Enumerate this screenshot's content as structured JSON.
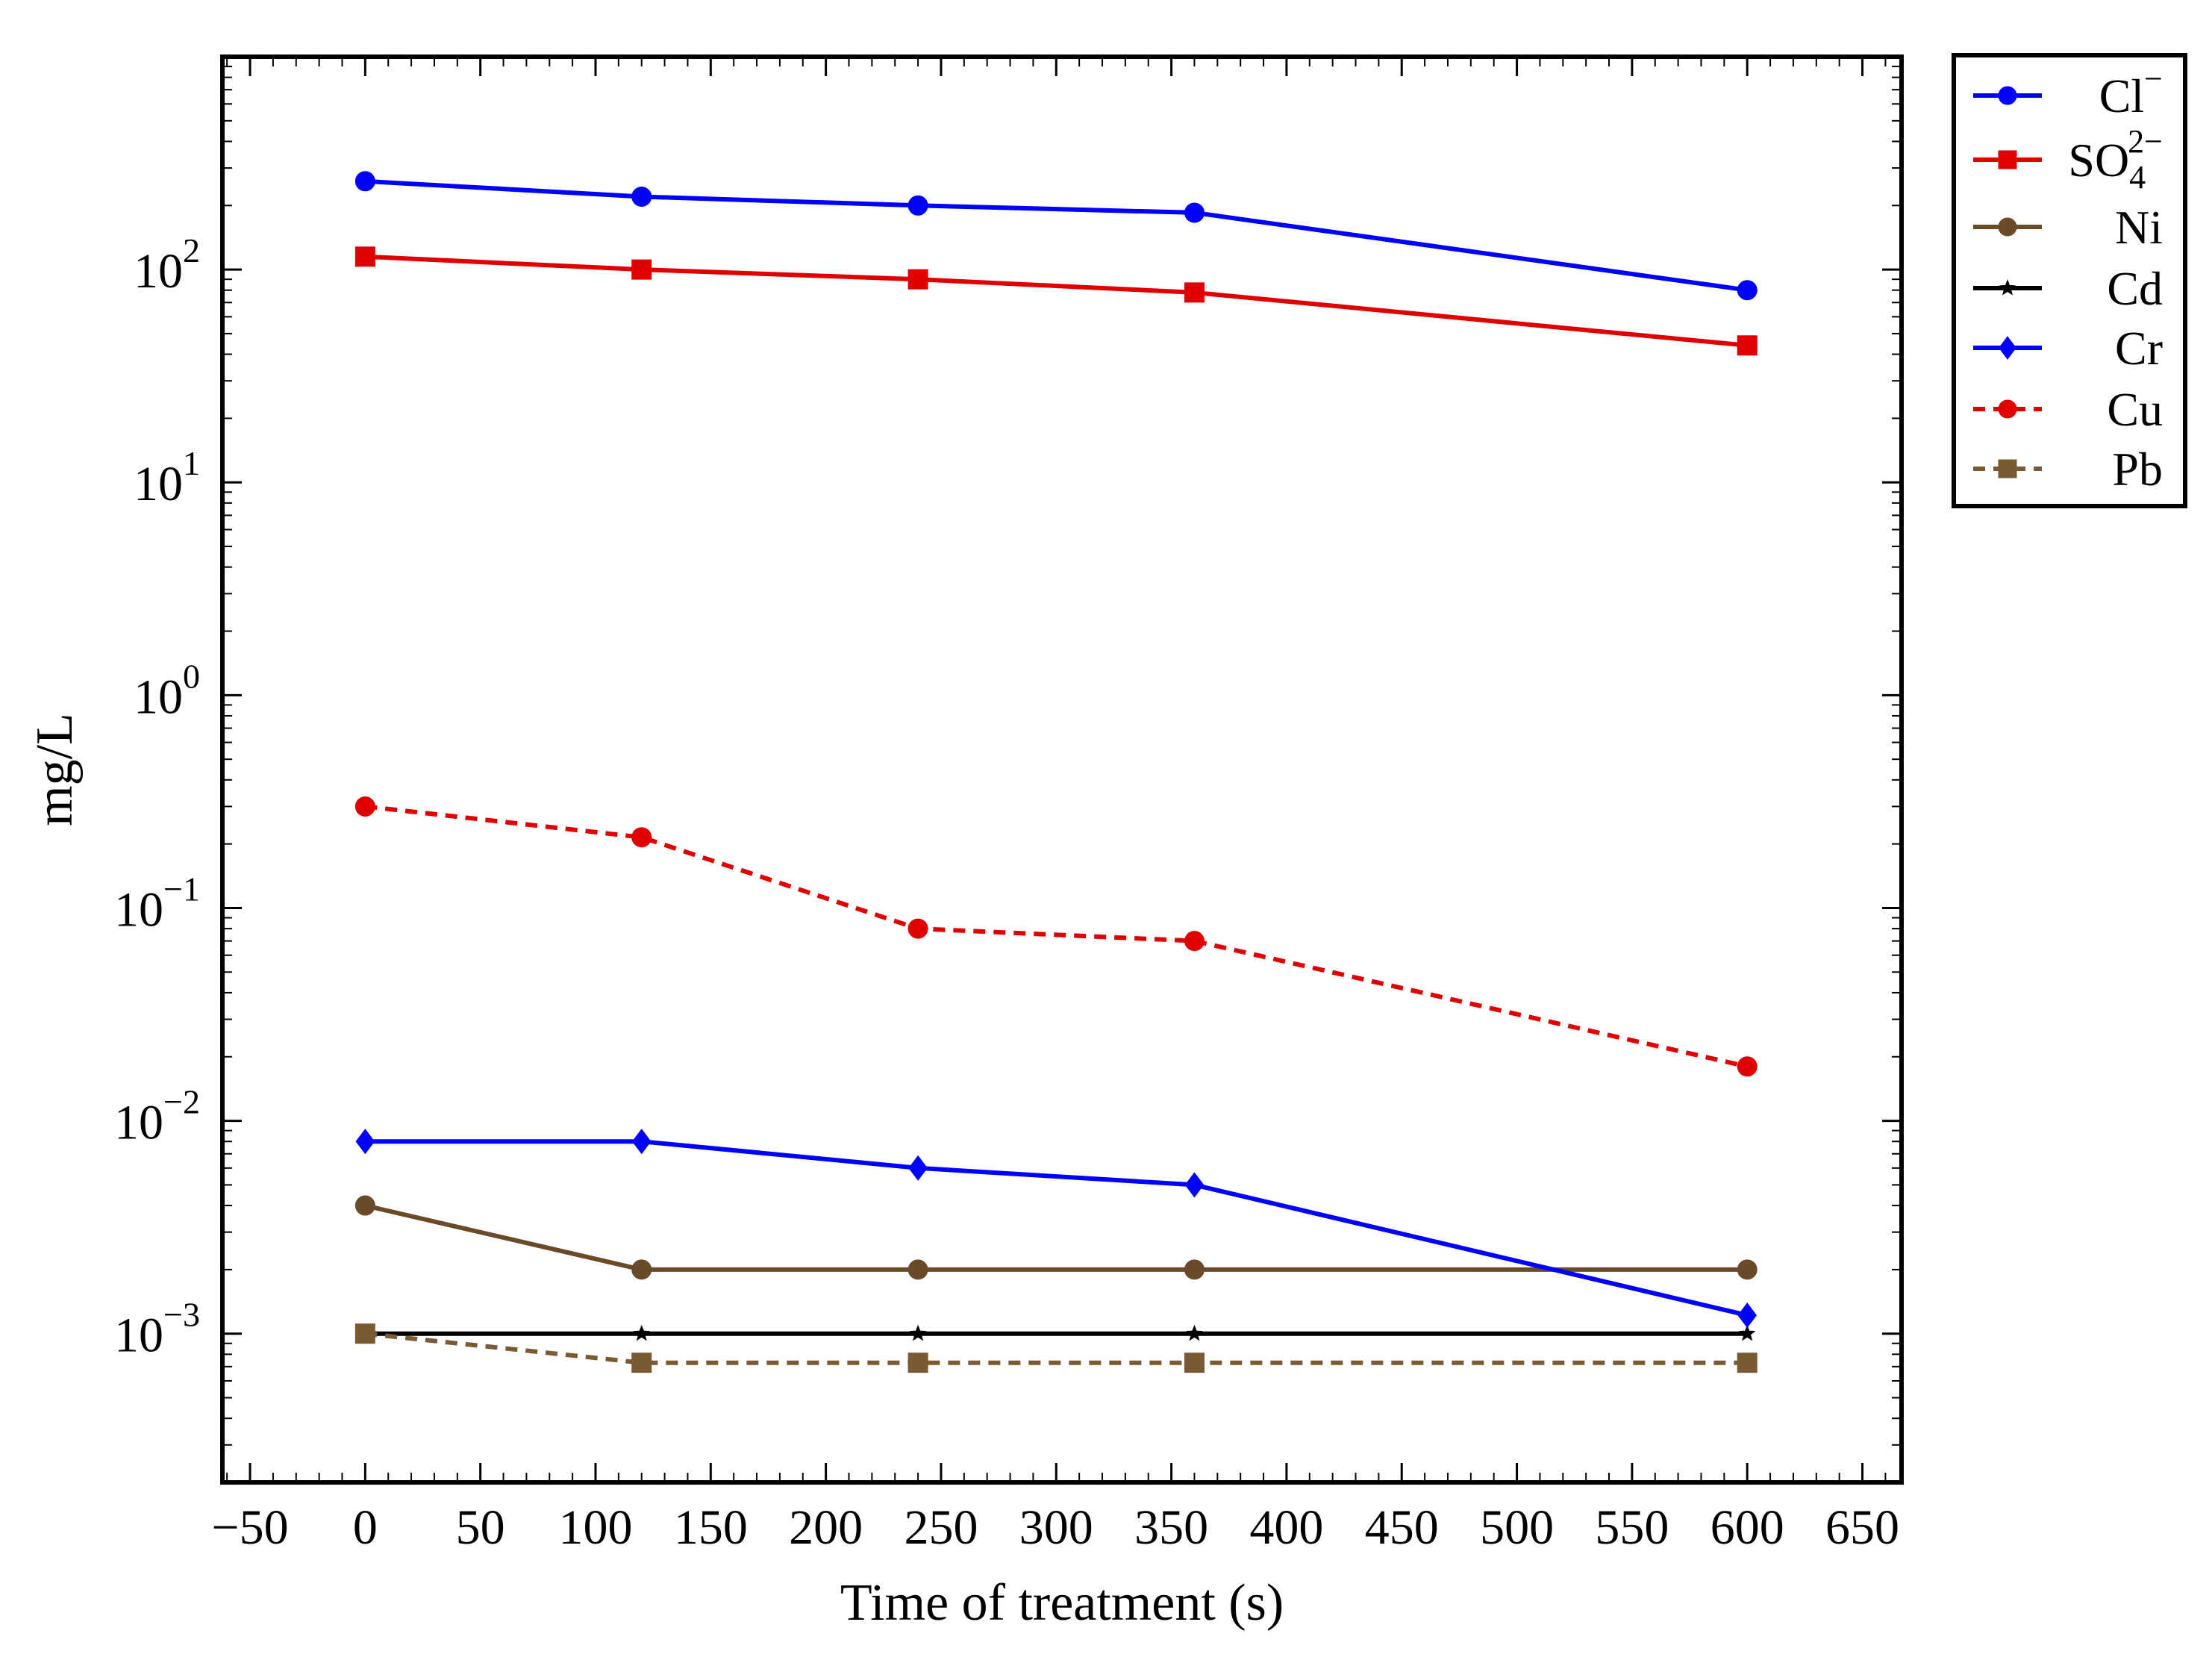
{
  "chart_data": {
    "type": "line",
    "title": "",
    "xlabel": "Time of treatment (s)",
    "ylabel": "mg/L",
    "xscale": "linear",
    "yscale": "log",
    "xlim": [
      -62,
      667
    ],
    "ylim": [
      0.0002,
      1000
    ],
    "xticks": [
      -50,
      0,
      50,
      100,
      150,
      200,
      250,
      300,
      350,
      400,
      450,
      500,
      550,
      600,
      650
    ],
    "xtick_labels": [
      "−50",
      "0",
      "50",
      "100",
      "150",
      "200",
      "250",
      "300",
      "350",
      "400",
      "450",
      "500",
      "550",
      "600",
      "650"
    ],
    "yticks": [
      {
        "value": 0.001,
        "base": "10",
        "exp": "−3"
      },
      {
        "value": 0.01,
        "base": "10",
        "exp": "−2"
      },
      {
        "value": 0.1,
        "base": "10",
        "exp": "−1"
      },
      {
        "value": 1,
        "base": "10",
        "exp": "0"
      },
      {
        "value": 10,
        "base": "10",
        "exp": "1"
      },
      {
        "value": 100,
        "base": "10",
        "exp": "2"
      }
    ],
    "grid": false,
    "legend_position": "outside-top-right",
    "x": [
      0,
      120,
      240,
      360,
      600
    ],
    "series": [
      {
        "name": "Cl⁻",
        "label_main": "Cl",
        "label_sup": "−",
        "label_sub": "",
        "color": "#0000ff",
        "marker": "circle",
        "dash": "solid",
        "values": [
          260,
          220,
          200,
          185,
          80
        ]
      },
      {
        "name": "SO₄²⁻",
        "label_main": "SO",
        "label_sup": "2−",
        "label_sub": "4",
        "color": "#e00000",
        "marker": "square",
        "dash": "solid",
        "values": [
          115,
          100,
          90,
          78,
          44
        ]
      },
      {
        "name": "Ni",
        "label_main": "Ni",
        "label_sup": "",
        "label_sub": "",
        "color": "#6b4a2a",
        "marker": "circle",
        "dash": "solid",
        "values": [
          0.004,
          0.002,
          0.002,
          0.002,
          0.002
        ]
      },
      {
        "name": "Cd",
        "label_main": "Cd",
        "label_sup": "",
        "label_sub": "",
        "color": "#000000",
        "marker": "star",
        "dash": "solid",
        "values": [
          0.001,
          0.001,
          0.001,
          0.001,
          0.001
        ]
      },
      {
        "name": "Cr",
        "label_main": "Cr",
        "label_sup": "",
        "label_sub": "",
        "color": "#0000ff",
        "marker": "diamond",
        "dash": "solid",
        "values": [
          0.008,
          0.008,
          0.006,
          0.005,
          0.00122
        ]
      },
      {
        "name": "Cu",
        "label_main": "Cu",
        "label_sup": "",
        "label_sub": "",
        "color": "#e00000",
        "marker": "circle",
        "dash": "dashed",
        "values": [
          0.3,
          0.215,
          0.08,
          0.07,
          0.018
        ]
      },
      {
        "name": "Pb",
        "label_main": "Pb",
        "label_sup": "",
        "label_sub": "",
        "color": "#7a5a32",
        "marker": "square",
        "dash": "dashed",
        "values": [
          0.001,
          0.00073,
          0.00073,
          0.00073,
          0.00073
        ]
      }
    ]
  }
}
